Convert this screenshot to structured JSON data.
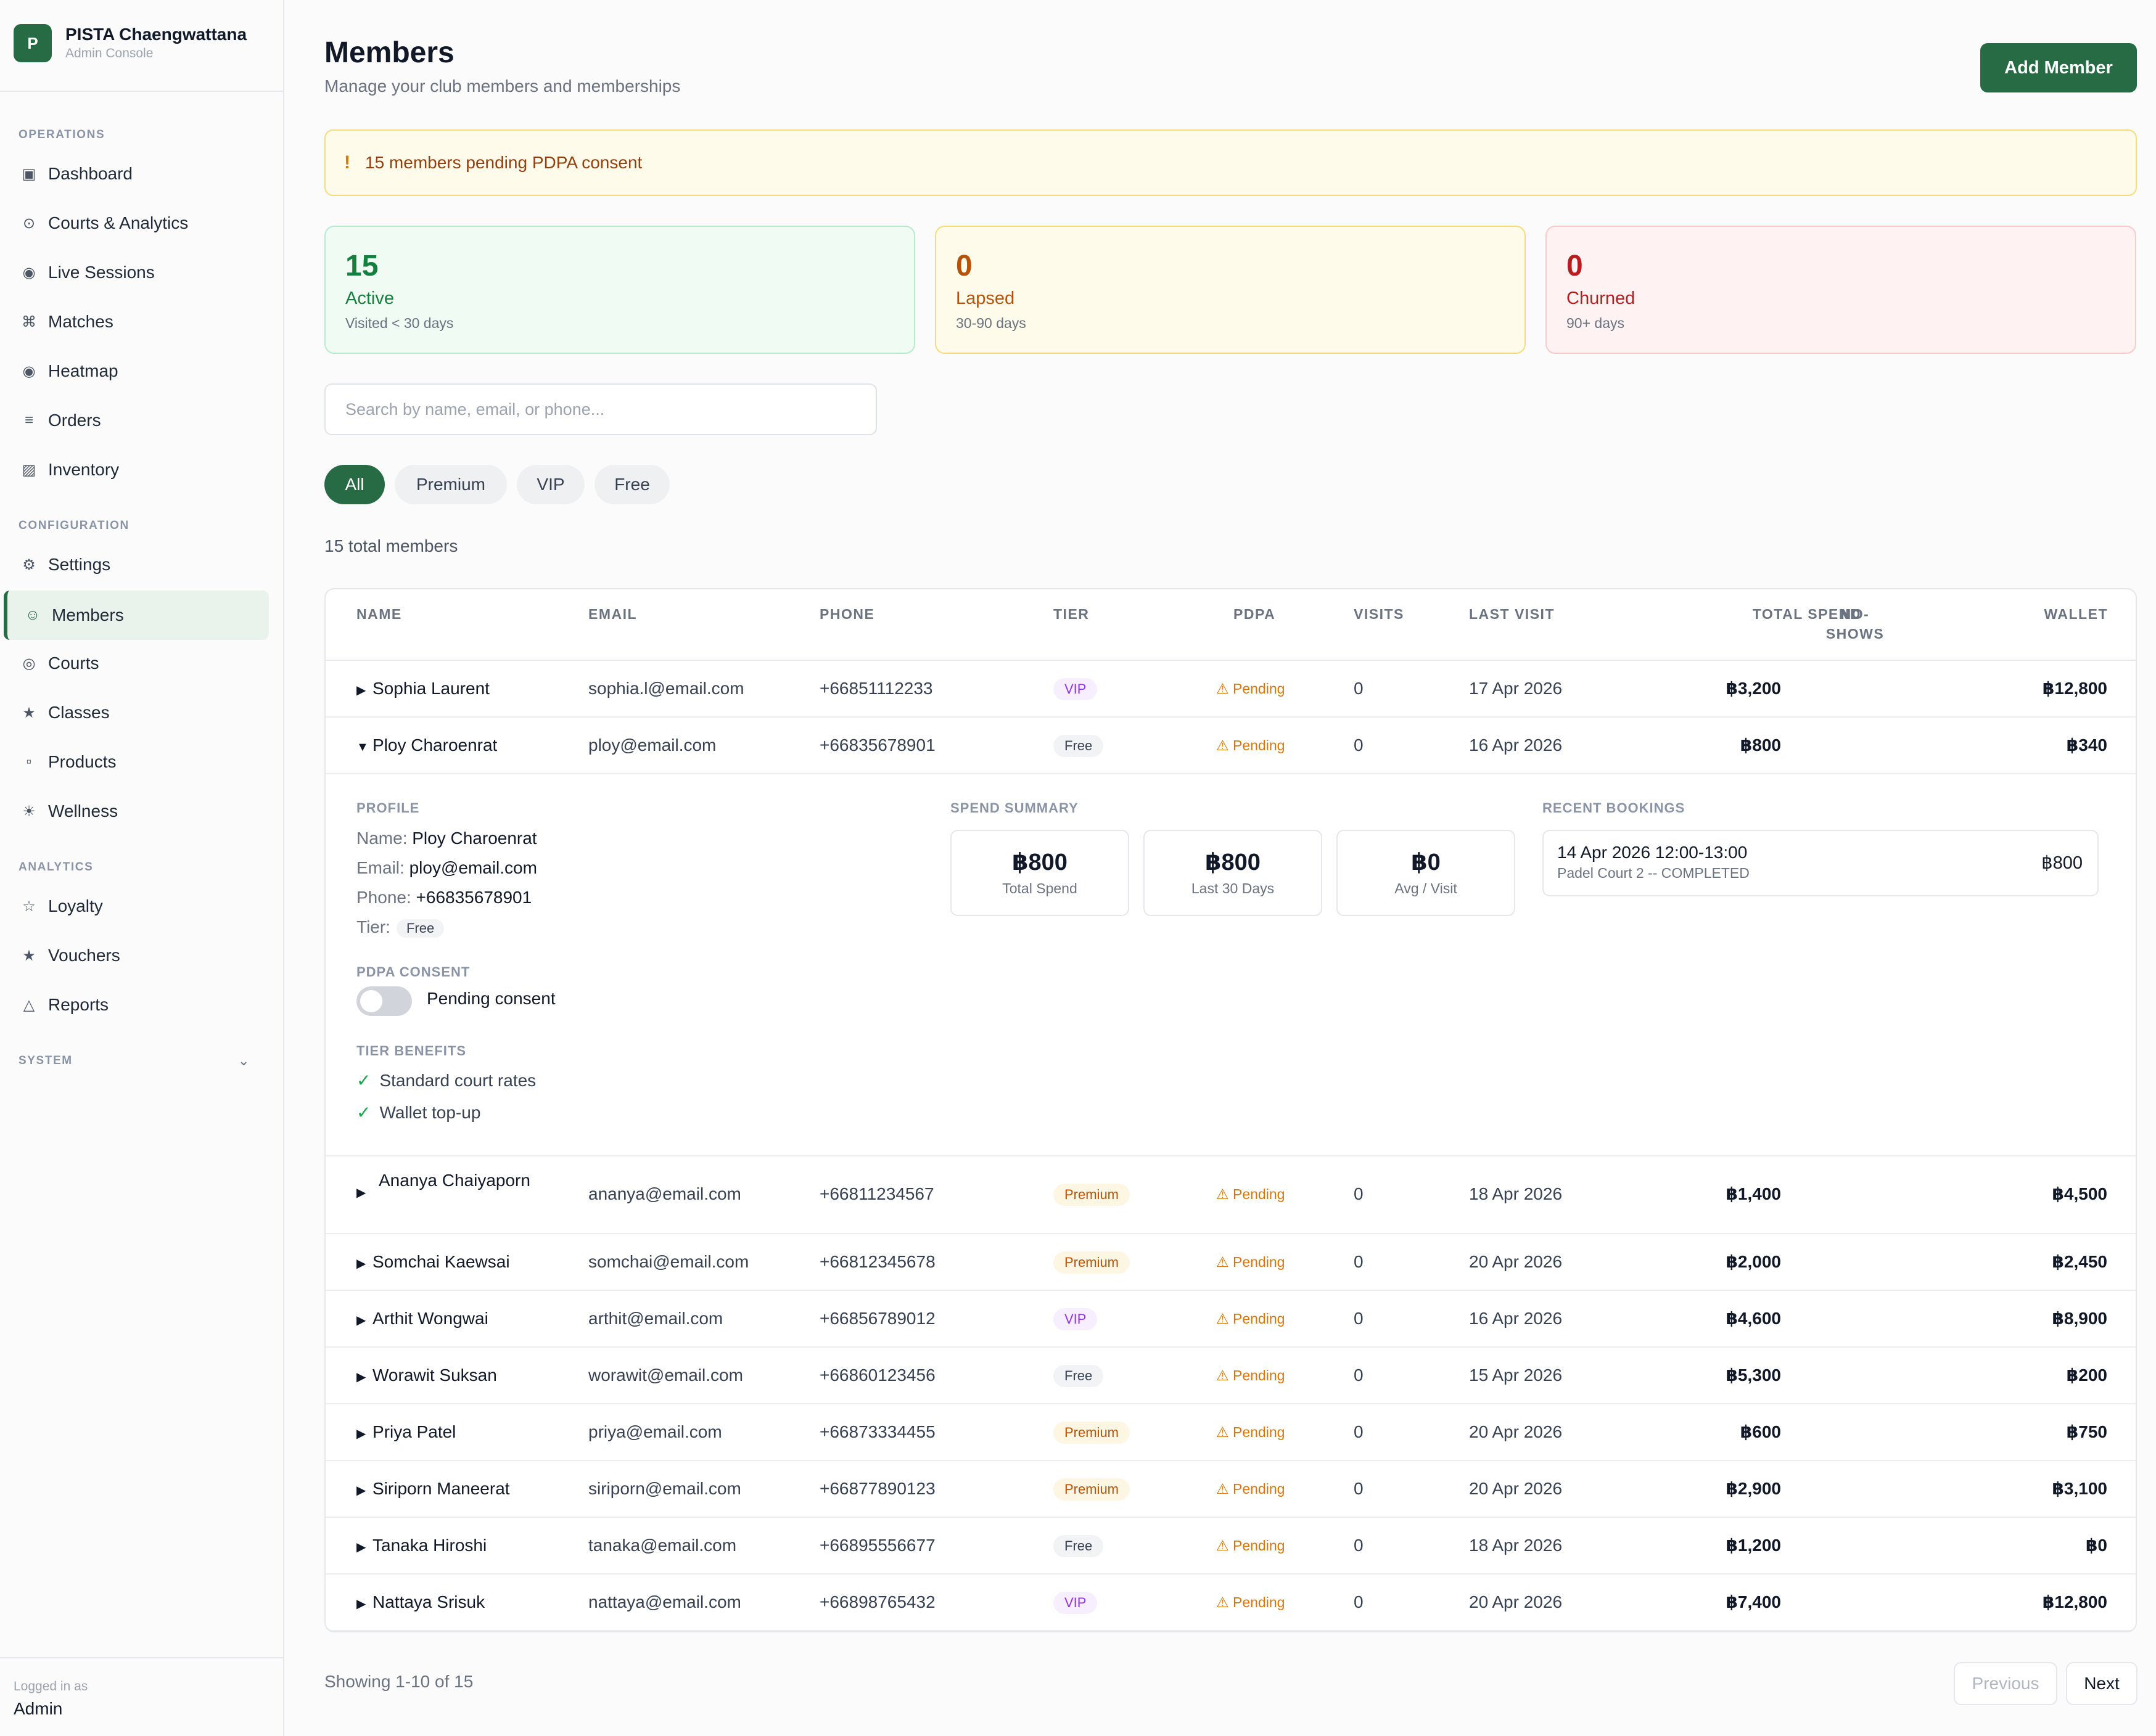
{
  "brand": {
    "logo_letter": "P",
    "name": "PISTA Chaengwattana",
    "subtitle": "Admin Console"
  },
  "sidebar": {
    "sections": [
      {
        "label": "OPERATIONS",
        "items": [
          {
            "label": "Dashboard",
            "icon": "dashboard-icon",
            "glyph": "▣"
          },
          {
            "label": "Courts & Analytics",
            "icon": "analytics-icon",
            "glyph": "⊙"
          },
          {
            "label": "Live Sessions",
            "icon": "live-icon",
            "glyph": "◉"
          },
          {
            "label": "Matches",
            "icon": "matches-icon",
            "glyph": "⌘"
          },
          {
            "label": "Heatmap",
            "icon": "heatmap-icon",
            "glyph": "◉"
          },
          {
            "label": "Orders",
            "icon": "orders-icon",
            "glyph": "≡"
          },
          {
            "label": "Inventory",
            "icon": "inventory-icon",
            "glyph": "▨"
          }
        ]
      },
      {
        "label": "CONFIGURATION",
        "items": [
          {
            "label": "Settings",
            "icon": "settings-icon",
            "glyph": "⚙"
          },
          {
            "label": "Members",
            "icon": "members-icon",
            "glyph": "☺",
            "active": true
          },
          {
            "label": "Courts",
            "icon": "courts-icon",
            "glyph": "◎"
          },
          {
            "label": "Classes",
            "icon": "classes-icon",
            "glyph": "★"
          },
          {
            "label": "Products",
            "icon": "products-icon",
            "glyph": "▫"
          },
          {
            "label": "Wellness",
            "icon": "wellness-icon",
            "glyph": "☀"
          }
        ]
      },
      {
        "label": "ANALYTICS",
        "items": [
          {
            "label": "Loyalty",
            "icon": "loyalty-icon",
            "glyph": "☆"
          },
          {
            "label": "Vouchers",
            "icon": "vouchers-icon",
            "glyph": "★"
          },
          {
            "label": "Reports",
            "icon": "reports-icon",
            "glyph": "△"
          }
        ]
      },
      {
        "label": "SYSTEM",
        "items": []
      }
    ],
    "logged_in_label": "Logged in as",
    "logged_in_user": "Admin"
  },
  "header": {
    "title": "Members",
    "subtitle": "Manage your club members and memberships",
    "add_button": "Add Member"
  },
  "alert": {
    "icon": "!",
    "text": "15 members pending PDPA consent"
  },
  "stats": [
    {
      "value": "15",
      "label": "Active",
      "sub": "Visited < 30 days",
      "color": "#15803d"
    },
    {
      "value": "0",
      "label": "Lapsed",
      "sub": "30-90 days",
      "color": "#b45309"
    },
    {
      "value": "0",
      "label": "Churned",
      "sub": "90+ days",
      "color": "#b91c1c"
    }
  ],
  "search": {
    "placeholder": "Search by name, email, or phone...",
    "value": ""
  },
  "filters": [
    {
      "label": "All",
      "active": true
    },
    {
      "label": "Premium"
    },
    {
      "label": "VIP"
    },
    {
      "label": "Free"
    }
  ],
  "total_text": "15 total members",
  "table": {
    "columns": [
      "NAME",
      "EMAIL",
      "PHONE",
      "TIER",
      "PDPA",
      "VISITS",
      "LAST VISIT",
      "TOTAL SPEND",
      "NO-\nSHOWS",
      "WALLET"
    ],
    "rows": [
      {
        "name": "Sophia Laurent",
        "email": "sophia.l@email.com",
        "phone": "+66851112233",
        "tier": "VIP",
        "pdpa": "⚠ Pending",
        "visits": "0",
        "last_visit": "17 Apr 2026",
        "total_spend": "฿3,200",
        "no_shows": "",
        "wallet": "฿12,800",
        "expanded": false
      },
      {
        "name": "Ploy Charoenrat",
        "email": "ploy@email.com",
        "phone": "+66835678901",
        "tier": "Free",
        "pdpa": "⚠ Pending",
        "visits": "0",
        "last_visit": "16 Apr 2026",
        "total_spend": "฿800",
        "no_shows": "",
        "wallet": "฿340",
        "expanded": true
      },
      {
        "name": "Ananya Chaiyaporn",
        "email": "ananya@email.com",
        "phone": "+66811234567",
        "tier": "Premium",
        "pdpa": "⚠ Pending",
        "visits": "0",
        "last_visit": "18 Apr 2026",
        "total_spend": "฿1,400",
        "no_shows": "",
        "wallet": "฿4,500",
        "expanded": false
      },
      {
        "name": "Somchai Kaewsai",
        "email": "somchai@email.com",
        "phone": "+66812345678",
        "tier": "Premium",
        "pdpa": "⚠ Pending",
        "visits": "0",
        "last_visit": "20 Apr 2026",
        "total_spend": "฿2,000",
        "no_shows": "",
        "wallet": "฿2,450",
        "expanded": false
      },
      {
        "name": "Arthit Wongwai",
        "email": "arthit@email.com",
        "phone": "+66856789012",
        "tier": "VIP",
        "pdpa": "⚠ Pending",
        "visits": "0",
        "last_visit": "16 Apr 2026",
        "total_spend": "฿4,600",
        "no_shows": "",
        "wallet": "฿8,900",
        "expanded": false
      },
      {
        "name": "Worawit Suksan",
        "email": "worawit@email.com",
        "phone": "+66860123456",
        "tier": "Free",
        "pdpa": "⚠ Pending",
        "visits": "0",
        "last_visit": "15 Apr 2026",
        "total_spend": "฿5,300",
        "no_shows": "",
        "wallet": "฿200",
        "expanded": false
      },
      {
        "name": "Priya Patel",
        "email": "priya@email.com",
        "phone": "+66873334455",
        "tier": "Premium",
        "pdpa": "⚠ Pending",
        "visits": "0",
        "last_visit": "20 Apr 2026",
        "total_spend": "฿600",
        "no_shows": "",
        "wallet": "฿750",
        "expanded": false
      },
      {
        "name": "Siriporn Maneerat",
        "email": "siriporn@email.com",
        "phone": "+66877890123",
        "tier": "Premium",
        "pdpa": "⚠ Pending",
        "visits": "0",
        "last_visit": "20 Apr 2026",
        "total_spend": "฿2,900",
        "no_shows": "",
        "wallet": "฿3,100",
        "expanded": false
      },
      {
        "name": "Tanaka Hiroshi",
        "email": "tanaka@email.com",
        "phone": "+66895556677",
        "tier": "Free",
        "pdpa": "⚠ Pending",
        "visits": "0",
        "last_visit": "18 Apr 2026",
        "total_spend": "฿1,200",
        "no_shows": "",
        "wallet": "฿0",
        "expanded": false
      },
      {
        "name": "Nattaya Srisuk",
        "email": "nattaya@email.com",
        "phone": "+66898765432",
        "tier": "VIP",
        "pdpa": "⚠ Pending",
        "visits": "0",
        "last_visit": "20 Apr 2026",
        "total_spend": "฿7,400",
        "no_shows": "",
        "wallet": "฿12,800",
        "expanded": false
      }
    ]
  },
  "detail": {
    "profile_label": "PROFILE",
    "name_key": "Name:",
    "name_val": "Ploy Charoenrat",
    "email_key": "Email:",
    "email_val": "ploy@email.com",
    "phone_key": "Phone:",
    "phone_val": "+66835678901",
    "tier_key": "Tier:",
    "tier_val": "Free",
    "pdpa_label": "PDPA CONSENT",
    "pdpa_toggle_on": false,
    "pdpa_status": "Pending consent",
    "benefits_label": "TIER BENEFITS",
    "benefits": [
      "Standard court rates",
      "Wallet top-up"
    ],
    "spend_label": "SPEND SUMMARY",
    "spend": [
      {
        "value": "฿800",
        "label": "Total Spend"
      },
      {
        "value": "฿800",
        "label": "Last 30 Days"
      },
      {
        "value": "฿0",
        "label": "Avg / Visit"
      }
    ],
    "bookings_label": "RECENT BOOKINGS",
    "bookings": [
      {
        "title": "14 Apr 2026 12:00-13:00",
        "sub": "Padel Court 2 -- COMPLETED",
        "amount": "฿800"
      }
    ]
  },
  "pagination": {
    "showing": "Showing 1-10 of 15",
    "prev": "Previous",
    "next": "Next",
    "prev_disabled": true
  },
  "colors": {
    "brand": "#276b45",
    "vip": "#9333ea",
    "premium": "#b45309",
    "pending": "#d97706"
  }
}
